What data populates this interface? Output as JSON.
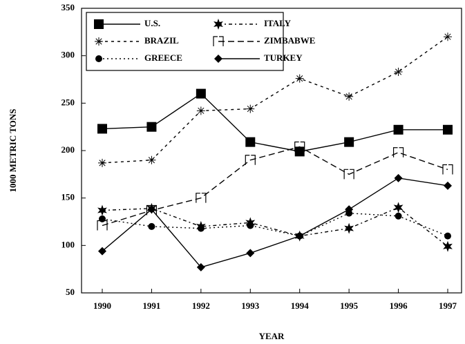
{
  "chart_data": {
    "type": "line",
    "x_label": "YEAR",
    "y_label": "1000 METRIC TONS",
    "categories": [
      "1990",
      "1991",
      "1992",
      "1993",
      "1994",
      "1995",
      "1996",
      "1997"
    ],
    "ylim": [
      50,
      350
    ],
    "yticks": [
      50,
      100,
      150,
      200,
      250,
      300,
      350
    ],
    "legend": "upper left",
    "series": [
      {
        "name": "U.S.",
        "color": "#000000",
        "line_style": "solid",
        "marker": "square",
        "values": [
          223,
          225,
          260,
          209,
          199,
          209,
          222,
          222
        ]
      },
      {
        "name": "ITALY",
        "color": "#000000",
        "line_style": "dashdot",
        "marker": "star",
        "values": [
          137,
          139,
          120,
          124,
          110,
          118,
          140,
          99
        ]
      },
      {
        "name": "BRAZIL",
        "color": "#000000",
        "line_style": "shortdash",
        "marker": "asterisk",
        "values": [
          187,
          190,
          242,
          244,
          276,
          257,
          283,
          320
        ]
      },
      {
        "name": "ZIMBABWE",
        "color": "#000000",
        "line_style": "dash",
        "marker": "bracket",
        "values": [
          121,
          137,
          150,
          190,
          204,
          175,
          198,
          180
        ]
      },
      {
        "name": "GREECE",
        "color": "#000000",
        "line_style": "dot",
        "marker": "circle",
        "values": [
          128,
          120,
          118,
          121,
          110,
          134,
          131,
          110
        ]
      },
      {
        "name": "TURKEY",
        "color": "#000000",
        "line_style": "solid",
        "marker": "diamond",
        "values": [
          94,
          138,
          77,
          92,
          110,
          138,
          171,
          163
        ]
      }
    ]
  }
}
